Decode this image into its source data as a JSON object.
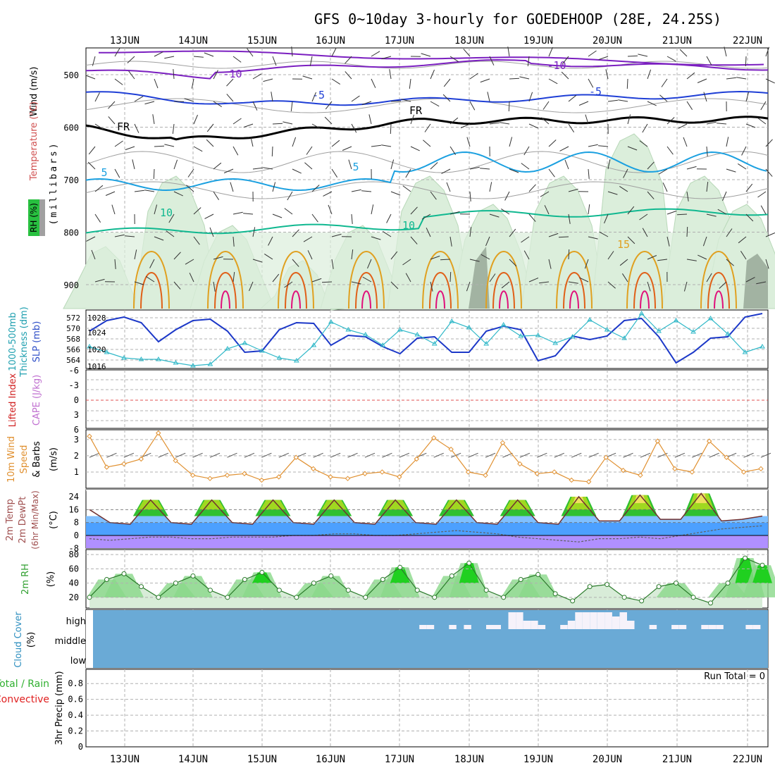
{
  "title": "GFS 0~10day 3-hourly for GOEDEHOOP (28E, 24.25S)",
  "days": [
    "13JUN",
    "14JUN",
    "15JUN",
    "16JUN",
    "17JUN",
    "18JUN",
    "19JUN",
    "20JUN",
    "21JUN",
    "22JUN"
  ],
  "colors": {
    "purple": "#7b1fc0",
    "blue": "#1f3fd6",
    "black": "#000000",
    "lightblue": "#1ba0e0",
    "teal": "#10b890",
    "orange": "#e0a020",
    "darkorange": "#e06018",
    "magenta": "#e0107a",
    "grey": "#a0a0a0",
    "rh_fill": "#dbeedb",
    "cloud": "#6aaad6",
    "slp": "#1c38c8",
    "thick": "#30b8c8",
    "wind10": "#e09030",
    "rh2m": "#30b030"
  },
  "panels": {
    "upper": {
      "ylabel_wind": "Wind (m/s)",
      "ylabel_temp": "Temperature (°C)",
      "ylabel_rh": "RH (%)",
      "ylabel_mb": "(millibars)",
      "levels": [
        "500",
        "600",
        "700",
        "800",
        "900"
      ],
      "contour_labels": [
        "-10",
        "-10",
        "-5",
        "-5",
        "FR",
        "FR",
        "-5",
        "5",
        "5",
        "10",
        "10",
        "15"
      ]
    },
    "thick": {
      "ylabel_thick": "1000-500mb",
      "ylabel_thick2": "Thickness (dm)",
      "ylabel_slp": "SLP (mb)",
      "left_ticks": [
        "572",
        "570",
        "568",
        "566",
        "564"
      ],
      "right_ticks": [
        "1028",
        "1024",
        "1020",
        "1016"
      ]
    },
    "li": {
      "ylabel_li": "Lifted Index",
      "ylabel_cape": "CAPE (J/kg)",
      "ticks": [
        "-6",
        "-3",
        "0",
        "3",
        "6"
      ]
    },
    "wind10": {
      "ylabel1": "10m Wind",
      "ylabel2": "Speed",
      "ylabel3": "& Barbs",
      "ylabel4": "(m/s)",
      "ticks": [
        "3",
        "2",
        "1"
      ]
    },
    "temp": {
      "ylabel1": "2m Temp",
      "ylabel2": "2m DewPt",
      "ylabel3": "(6hr Min/Max)",
      "ylabel4": "(°C)",
      "ticks": [
        "24",
        "16",
        "8",
        "0",
        "-8"
      ]
    },
    "rh2m": {
      "ylabel1": "2m RH",
      "ylabel2": "(%)",
      "ticks": [
        "80",
        "60",
        "40",
        "20"
      ]
    },
    "cloud": {
      "ylabel1": "Cloud Cover",
      "ylabel2": "(%)",
      "ticks": [
        "high",
        "middle",
        "low"
      ]
    },
    "precip": {
      "ylabel1": "Total / Rain",
      "ylabel2": "Convective",
      "ylabel3": "3hr Precip (mm)",
      "run_total": "Run Total = 0",
      "ticks": [
        "0.8",
        "0.6",
        "0.4",
        "0.2",
        "0"
      ]
    }
  },
  "chart_data": [
    {
      "type": "line",
      "title": "1000-500mb Thickness (dm) / SLP (mb)",
      "x": [
        "13JUN",
        "14JUN",
        "15JUN",
        "16JUN",
        "17JUN",
        "18JUN",
        "19JUN",
        "20JUN",
        "21JUN",
        "22JUN"
      ],
      "series": [
        {
          "name": "SLP (mb)",
          "values": [
            1028,
            1027,
            1026,
            1020,
            1024,
            1018,
            1021,
            1016,
            1018,
            1028
          ]
        },
        {
          "name": "1000-500mb Thickness (dm)",
          "values": [
            565,
            566,
            564,
            569,
            569,
            571,
            568,
            571,
            570,
            565
          ]
        }
      ],
      "ylim_left": [
        564,
        572
      ],
      "ylim_right": [
        1016,
        1028
      ]
    },
    {
      "type": "line",
      "title": "10m Wind Speed",
      "ylim": [
        0,
        3.5
      ],
      "series": [
        {
          "name": "10m Wind Speed",
          "values": [
            3.2,
            1.3,
            1.5,
            1.8,
            3.4,
            1.7,
            0.8,
            0.6,
            0.8,
            0.9,
            0.5,
            0.7,
            1.9,
            1.2,
            0.7,
            0.6,
            0.9,
            1.0,
            0.7,
            1.8,
            3.1,
            2.4,
            1.0,
            0.8,
            2.8,
            1.5,
            0.9,
            1.0,
            0.5,
            0.4,
            1.9,
            1.1,
            0.8,
            2.9,
            1.2,
            1.0,
            2.9,
            1.9,
            1.0,
            1.2
          ]
        }
      ]
    },
    {
      "type": "area",
      "title": "2m RH (%)",
      "ylim": [
        10,
        85
      ],
      "series": [
        {
          "name": "2m RH",
          "values": [
            20,
            45,
            53,
            35,
            20,
            40,
            50,
            30,
            20,
            45,
            55,
            30,
            20,
            40,
            50,
            30,
            20,
            45,
            62,
            30,
            20,
            50,
            68,
            30,
            20,
            45,
            52,
            25,
            15,
            35,
            38,
            20,
            15,
            35,
            40,
            20,
            12,
            40,
            75,
            65
          ]
        }
      ]
    },
    {
      "type": "area",
      "title": "2m Temp (°C)",
      "ylim": [
        -8,
        26
      ],
      "series": [
        {
          "name": "2m Temp",
          "values": [
            16,
            8,
            7,
            22,
            8,
            7,
            22,
            8,
            7,
            22,
            8,
            7,
            22,
            8,
            7,
            22,
            8,
            7,
            22,
            8,
            7,
            22,
            8,
            7,
            24,
            9,
            9,
            25,
            10,
            10,
            26,
            9,
            10,
            12
          ]
        },
        {
          "name": "2m DewPt",
          "values": [
            -2,
            -3,
            -2,
            -1,
            -1,
            -2,
            -2,
            -1,
            -1,
            -1,
            0,
            0,
            1,
            1,
            0,
            0,
            1,
            2,
            3,
            2,
            1,
            -1,
            -2,
            -3,
            -4,
            -2,
            -2,
            -1,
            -2,
            0,
            2,
            4,
            5,
            6
          ]
        }
      ]
    },
    {
      "type": "bar",
      "title": "Cloud Cover high (%)",
      "ylim": [
        0,
        100
      ],
      "series": [
        {
          "name": "high",
          "values": [
            0,
            0,
            0,
            0,
            0,
            0,
            0,
            0,
            0,
            0,
            0,
            0,
            0,
            0,
            0,
            0,
            0,
            0,
            0,
            0,
            0,
            0,
            0,
            0,
            0,
            0,
            0,
            0,
            0,
            0,
            0,
            0,
            0,
            0,
            0,
            0,
            0,
            0,
            0,
            0,
            0,
            0,
            0,
            0,
            10,
            10,
            0,
            0,
            10,
            0,
            10,
            0,
            0,
            10,
            10,
            0,
            40,
            40,
            20,
            20,
            10,
            0,
            0,
            10,
            20,
            40,
            40,
            40,
            40,
            40,
            30,
            40,
            20,
            0,
            0,
            10,
            0,
            0,
            10,
            10,
            0,
            0,
            10,
            10,
            10,
            0,
            0,
            0,
            10,
            10,
            0
          ]
        }
      ]
    },
    {
      "type": "bar",
      "title": "3hr Precip (mm)",
      "ylim": [
        0,
        1
      ],
      "series": [
        {
          "name": "3hr Precip",
          "values": [
            0,
            0,
            0,
            0,
            0,
            0,
            0,
            0,
            0,
            0
          ]
        }
      ]
    }
  ]
}
